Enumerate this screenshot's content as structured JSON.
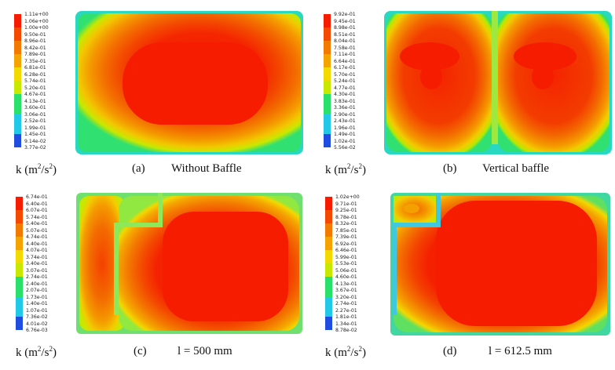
{
  "panels": [
    {
      "id": "a",
      "k_label": "k (m",
      "k_unit_tail": "/s",
      "letter": "(a)",
      "title": "Without Baffle",
      "legend": [
        "1.11e+00",
        "1.06e+00",
        "1.00e+00",
        "9.50e-01",
        "8.96e-01",
        "8.42e-01",
        "7.89e-01",
        "7.35e-01",
        "6.81e-01",
        "6.28e-01",
        "5.74e-01",
        "5.20e-01",
        "4.67e-01",
        "4.13e-01",
        "3.60e-01",
        "3.06e-01",
        "2.52e-01",
        "1.99e-01",
        "1.45e-01",
        "9.14e-02",
        "3.77e-02"
      ]
    },
    {
      "id": "b",
      "k_label": "k (m",
      "k_unit_tail": "/s",
      "letter": "(b)",
      "title": "Vertical baffle",
      "legend": [
        "9.92e-01",
        "9.45e-01",
        "8.98e-01",
        "8.51e-01",
        "8.04e-01",
        "7.58e-01",
        "7.11e-01",
        "6.64e-01",
        "6.17e-01",
        "5.70e-01",
        "5.24e-01",
        "4.77e-01",
        "4.30e-01",
        "3.83e-01",
        "3.36e-01",
        "2.90e-01",
        "2.43e-01",
        "1.96e-01",
        "1.49e-01",
        "1.02e-01",
        "5.56e-02"
      ]
    },
    {
      "id": "c",
      "k_label": "k (m",
      "k_unit_tail": "/s",
      "letter": "(c)",
      "title": "l = 500 mm",
      "legend": [
        "6.74e-01",
        "6.40e-01",
        "6.07e-01",
        "5.74e-01",
        "5.40e-01",
        "5.07e-01",
        "4.74e-01",
        "4.40e-01",
        "4.07e-01",
        "3.74e-01",
        "3.40e-01",
        "3.07e-01",
        "2.74e-01",
        "2.40e-01",
        "2.07e-01",
        "1.73e-01",
        "1.40e-01",
        "1.07e-01",
        "7.36e-02",
        "4.01e-02",
        "6.76e-03"
      ]
    },
    {
      "id": "d",
      "k_label": "k (m",
      "k_unit_tail": "/s",
      "letter": "(d)",
      "title": "l = 612.5 mm",
      "legend": [
        "1.02e+00",
        "9.71e-01",
        "9.25e-01",
        "8.78e-01",
        "8.32e-01",
        "7.85e-01",
        "7.39e-01",
        "6.92e-01",
        "6.46e-01",
        "5.99e-01",
        "5.53e-01",
        "5.06e-01",
        "4.60e-01",
        "4.13e-01",
        "3.67e-01",
        "3.20e-01",
        "2.74e-01",
        "2.27e-01",
        "1.81e-01",
        "1.34e-01",
        "8.78e-02"
      ]
    }
  ],
  "colors": {
    "red": "#f51c00",
    "orange_red": "#f34a00",
    "orange": "#f37a00",
    "amber": "#f4a300",
    "yellow": "#f2d900",
    "yellow_green": "#c8e800",
    "green": "#28e06a",
    "cyan": "#22c8e8",
    "blue": "#1f4de0"
  }
}
